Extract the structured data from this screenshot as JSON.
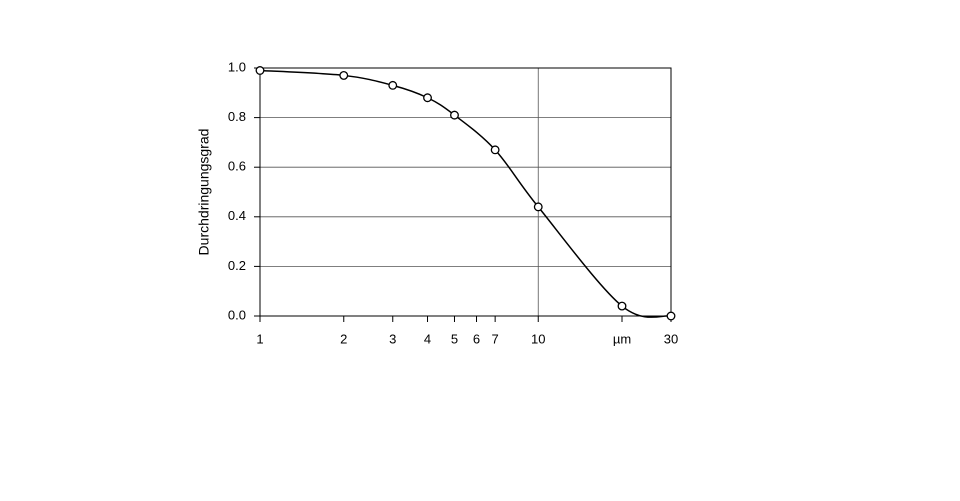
{
  "chart_data": {
    "type": "line",
    "ylabel": "Durchdringungsgrad",
    "x": [
      1,
      2,
      3,
      4,
      5,
      7,
      10,
      20,
      30
    ],
    "series": [
      {
        "name": null,
        "color": "#000000",
        "values": [
          0.99,
          0.97,
          0.93,
          0.88,
          0.81,
          0.67,
          0.44,
          0.04,
          0.0
        ]
      }
    ],
    "xscale": "log",
    "xlim": [
      1,
      30
    ],
    "xticks": [
      1,
      2,
      3,
      4,
      5,
      6,
      7,
      10,
      {
        "value": 20,
        "label": "µm"
      },
      30
    ],
    "x_gridlines": [
      10
    ],
    "ylim": [
      0,
      1
    ],
    "yticks": [
      {
        "value": 0,
        "label": "0.0"
      },
      0.2,
      0.4,
      0.6,
      0.8,
      {
        "value": 1,
        "label": "1.0"
      }
    ],
    "grid": true,
    "markers": "open-circle"
  }
}
